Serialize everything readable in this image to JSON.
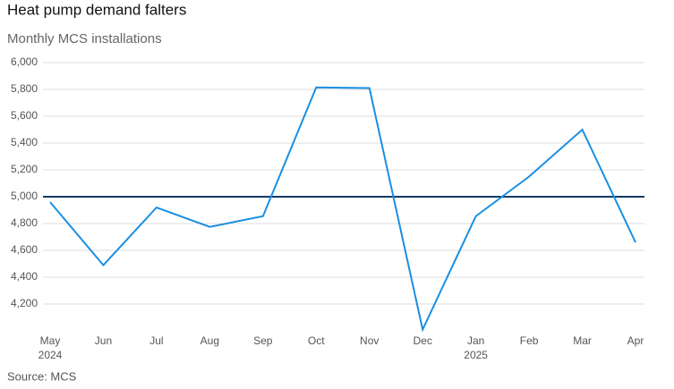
{
  "chart_data": {
    "type": "line",
    "title": "Heat pump demand falters",
    "subtitle": "Monthly MCS installations",
    "source": "Source: MCS",
    "categories": [
      [
        "May",
        "2024"
      ],
      [
        "Jun"
      ],
      [
        "Jul"
      ],
      [
        "Aug"
      ],
      [
        "Sep"
      ],
      [
        "Oct"
      ],
      [
        "Nov"
      ],
      [
        "Dec"
      ],
      [
        "Jan",
        "2025"
      ],
      [
        "Feb"
      ],
      [
        "Mar"
      ],
      [
        "Apr"
      ]
    ],
    "series": [
      {
        "name": "MCS installations",
        "color": "#1a8fe3",
        "values": [
          4960,
          4490,
          4920,
          4775,
          4855,
          5815,
          5810,
          4010,
          4855,
          5150,
          5500,
          4660
        ]
      }
    ],
    "ylim": [
      4000,
      6000
    ],
    "yticks": [
      {
        "value": 4200,
        "label": "4,200"
      },
      {
        "value": 4400,
        "label": "4,400"
      },
      {
        "value": 4600,
        "label": "4,600"
      },
      {
        "value": 4800,
        "label": "4,800"
      },
      {
        "value": 5000,
        "label": "5,000"
      },
      {
        "value": 5200,
        "label": "5,200"
      },
      {
        "value": 5400,
        "label": "5,400"
      },
      {
        "value": 5600,
        "label": "5,600"
      },
      {
        "value": 5800,
        "label": "5,800"
      },
      {
        "value": 6000,
        "label": "6,000"
      }
    ],
    "grid": true,
    "reference_line": {
      "value": 5000,
      "color": "#0d3b66"
    }
  }
}
